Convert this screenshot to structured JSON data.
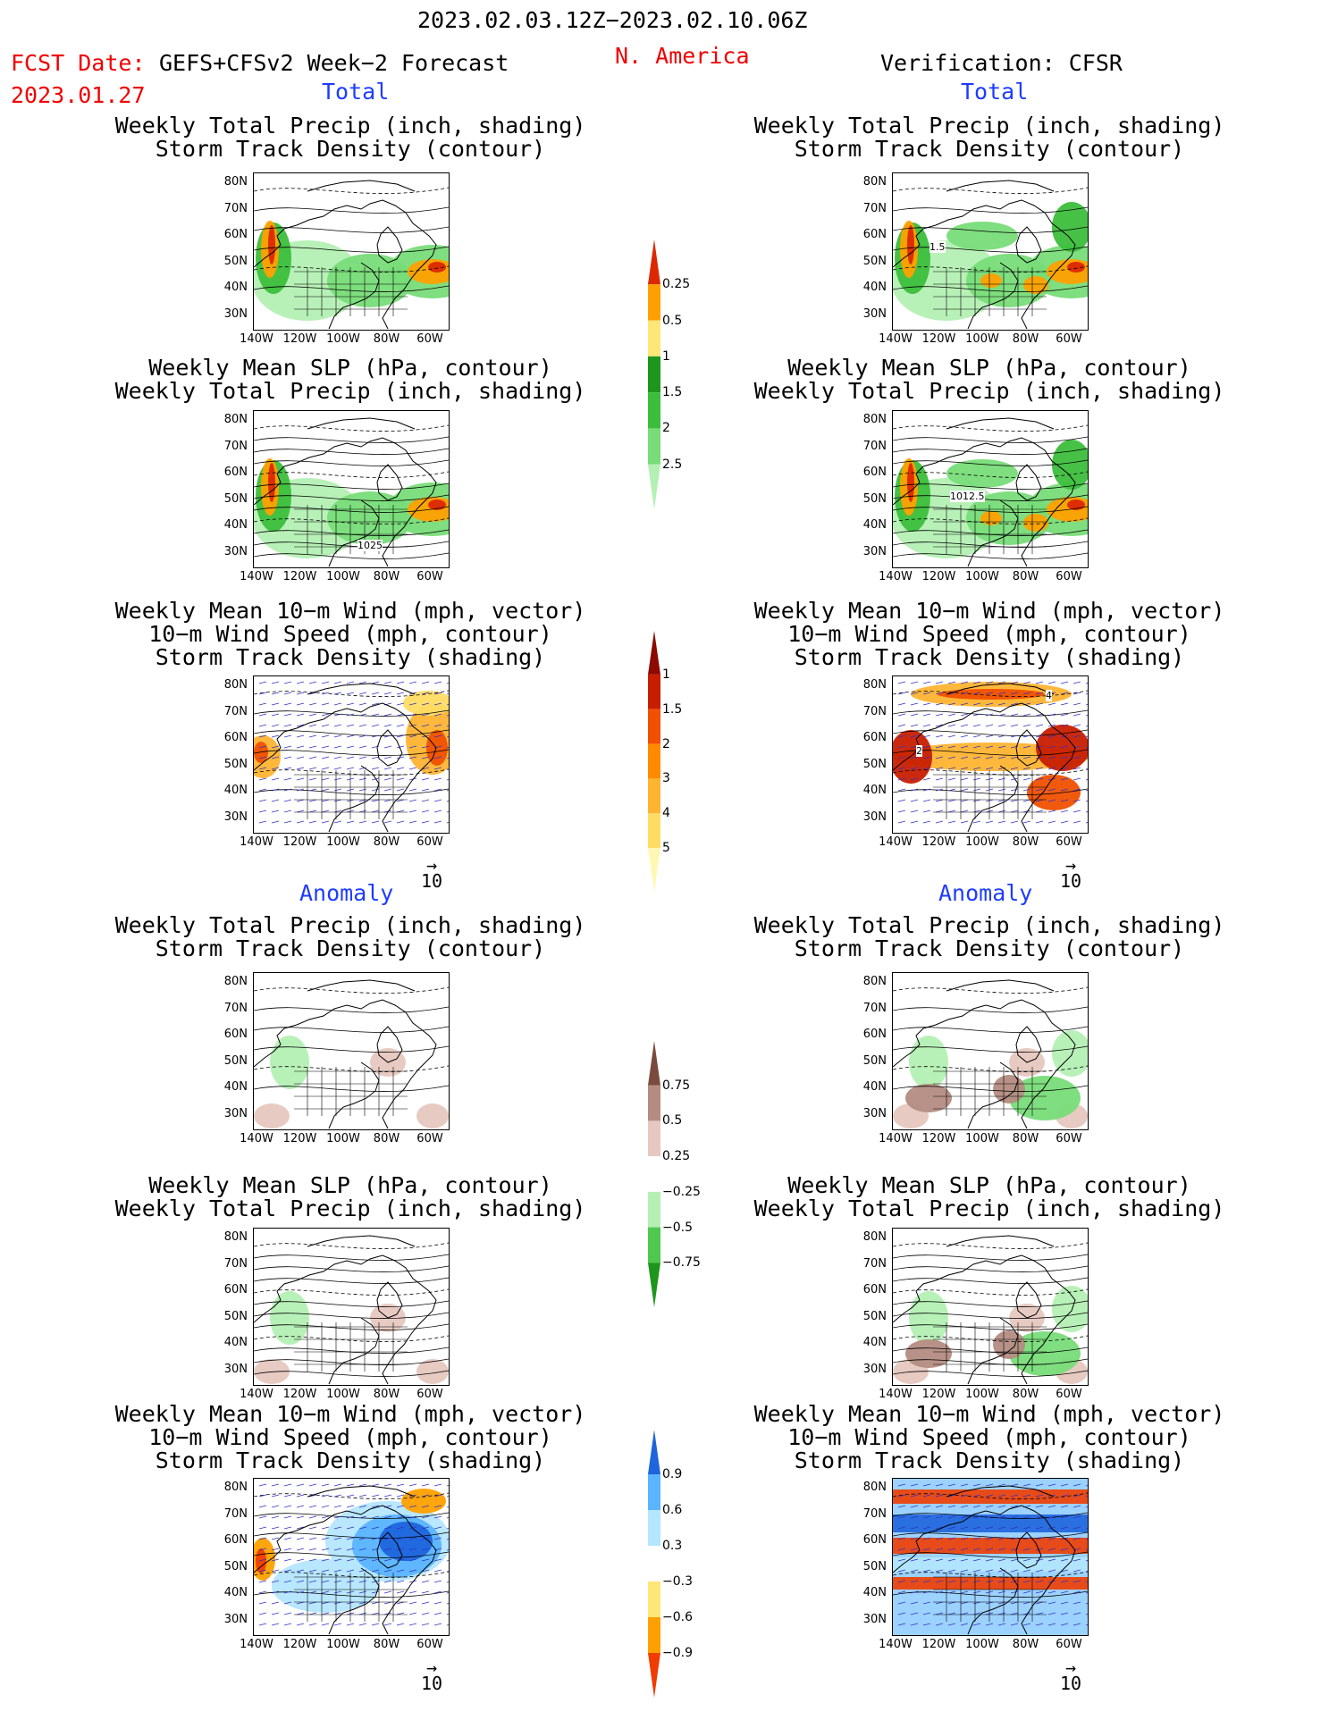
{
  "header": {
    "date_range": "2023.02.03.12Z−2023.02.10.06Z",
    "fcst_label": "FCST Date:",
    "fcst_model": "GEFS+CFSv2 Week−2 Forecast",
    "fcst_date": "2023.01.27",
    "region": "N. America",
    "verification": "Verification: CFSR"
  },
  "sections": {
    "total": "Total",
    "anomaly": "Anomaly"
  },
  "panel_titles": {
    "precip_track": [
      "Weekly Total Precip (inch, shading)",
      "Storm Track Density (contour)"
    ],
    "slp_precip": [
      "Weekly Mean SLP (hPa, contour)",
      "Weekly Total Precip (inch, shading)"
    ],
    "wind_track": [
      "Weekly Mean 10−m Wind (mph, vector)",
      "10−m Wind Speed (mph, contour)",
      "Storm Track Density (shading)"
    ]
  },
  "axes": {
    "lat": [
      "80N",
      "70N",
      "60N",
      "50N",
      "40N",
      "30N"
    ],
    "lon": [
      "140W",
      "120W",
      "100W",
      "80W",
      "60W"
    ]
  },
  "vector_ref": "10",
  "contour_labels": {
    "fc_slp": "1025",
    "ver_precip": "1.5",
    "ver_slp": "1012.5",
    "ver_wind_a": "4",
    "ver_wind_b": "2"
  },
  "colorbars": {
    "precip_total": {
      "labels": [
        "0.25",
        "0.5",
        "1",
        "1.5",
        "2",
        "2.5"
      ],
      "colors": [
        "#b4f0b4",
        "#78dc78",
        "#3cbe3c",
        "#1e961e",
        "#ffe678",
        "#ffa000",
        "#dc2800"
      ]
    },
    "track_total": {
      "labels": [
        "1",
        "1.5",
        "2",
        "3",
        "4",
        "5"
      ],
      "colors": [
        "#fff8b4",
        "#ffdc64",
        "#ffb432",
        "#ff8c00",
        "#f05000",
        "#c81e00",
        "#8c0a00"
      ]
    },
    "precip_anom": {
      "labels": [
        "0.75",
        "0.5",
        "0.25",
        "−0.25",
        "−0.5",
        "−0.75"
      ],
      "colors": [
        "#1e961e",
        "#50c850",
        "#b4f0b4",
        "#ffffff",
        "#e6c8c0",
        "#b48c82",
        "#7a4a3c"
      ]
    },
    "track_anom": {
      "labels": [
        "0.9",
        "0.6",
        "0.3",
        "−0.3",
        "−0.6",
        "−0.9"
      ],
      "colors": [
        "#f03c00",
        "#ffa000",
        "#ffe678",
        "#ffffff",
        "#b4e6ff",
        "#5ab4ff",
        "#1e64dc"
      ]
    }
  }
}
